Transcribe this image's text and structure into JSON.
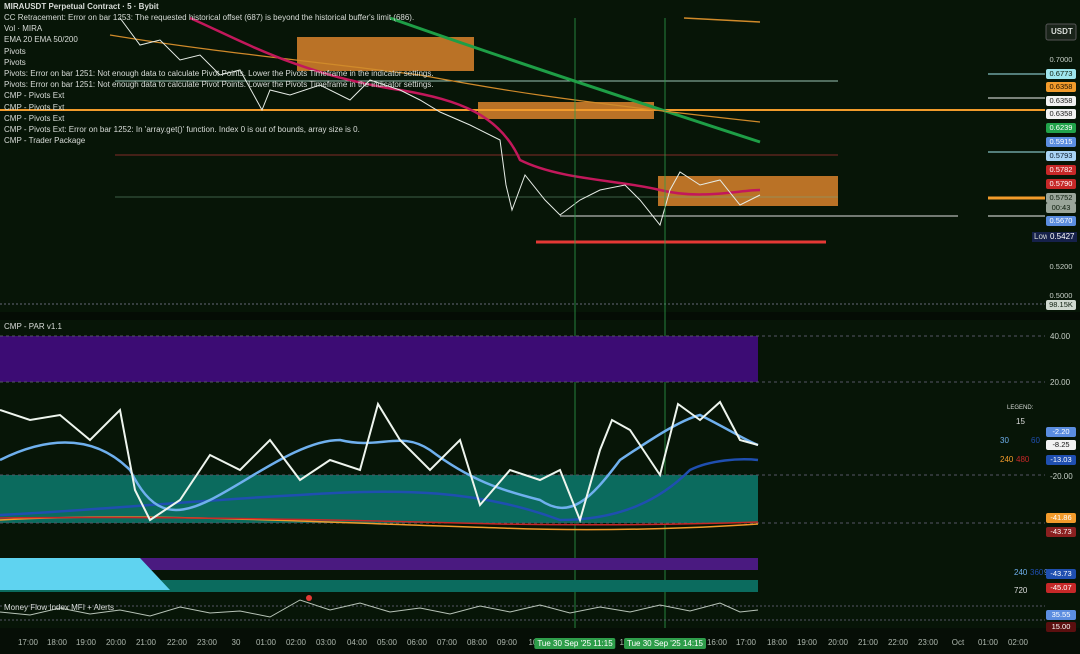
{
  "header": {
    "symbol": "MIRAUSDT Perpetual Contract · 5 · Bybit",
    "indicators": [
      "CC Retracement: Error on bar 1253: The requested historical offset (687) is beyond the historical buffer's limit (686).",
      "Vol · MIRA",
      "EMA 20 EMA 50/200",
      "Pivots",
      "Pivots",
      "Pivots: Error on bar 1251: Not enough data to calculate Pivot Points. Lower the Pivots Timeframe in the indicator settings.",
      "Pivots: Error on bar 1251: Not enough data to calculate Pivot Points. Lower the Pivots Timeframe in the indicator settings.",
      "CMP - Pivots Ext",
      "CMP - Pivots Ext",
      "CMP - Pivots Ext",
      "CMP - Pivots Ext: Error on bar 1252: In 'array.get()' function. Index 0 is out of bounds, array size is 0.",
      "CMP - Trader Package"
    ]
  },
  "price_axis": {
    "currency": "USDT",
    "labels": [
      {
        "text": "0.7000",
        "bg": "transparent",
        "fg": "#c8d0c8"
      },
      {
        "text": "0.6773",
        "bg": "#9fe6ee",
        "fg": "#0b1b0b"
      },
      {
        "text": "0.6358",
        "bg": "#f29b2b",
        "fg": "#1a1000"
      },
      {
        "text": "0.6358",
        "bg": "#f2f2f2",
        "fg": "#1a1a1a"
      },
      {
        "text": "0.6358",
        "bg": "#f2f2f2",
        "fg": "#1a1a1a"
      },
      {
        "text": "0.6239",
        "bg": "#21a34a",
        "fg": "#ffffff"
      },
      {
        "text": "0.5915",
        "bg": "#5b8de0",
        "fg": "#ffffff"
      },
      {
        "text": "0.5793",
        "bg": "#a9d4f5",
        "fg": "#0b1b2b"
      },
      {
        "text": "0.5782",
        "bg": "#c62828",
        "fg": "#ffffff"
      },
      {
        "text": "0.5790",
        "bg": "#c62828",
        "fg": "#ffffff"
      },
      {
        "text": "0.5752",
        "bg": "#9aa59a",
        "fg": "#0b1b0b"
      },
      {
        "text": "00:43",
        "bg": "#9aa59a",
        "fg": "#0b1b0b"
      },
      {
        "text": "0.5670",
        "bg": "#5b8de0",
        "fg": "#ffffff"
      },
      {
        "text": "0.5200",
        "bg": "transparent",
        "fg": "#c8d0c8"
      },
      {
        "text": "0.5000",
        "bg": "transparent",
        "fg": "#c8d0c8"
      },
      {
        "text": "98.15K",
        "bg": "#cfd8cf",
        "fg": "#102010"
      }
    ],
    "low_label": "Low",
    "low_value": "0.5427"
  },
  "par_panel": {
    "title": "CMP - PAR v1.1",
    "axis": [
      "40.00",
      "20.00",
      "-20.00"
    ],
    "legend_title": "LEGEND:",
    "legend": [
      "15",
      "30",
      "60",
      "240",
      "480"
    ],
    "value_labels": [
      {
        "text": "-2.20",
        "bg": "#5b8de0"
      },
      {
        "text": "-8.25",
        "bg": "#f2f2f2"
      },
      {
        "text": "-13.03",
        "bg": "#1f4fb0"
      },
      {
        "text": "-41.86",
        "bg": "#f29b2b"
      },
      {
        "text": "-43.73",
        "bg": "#8b2020"
      }
    ]
  },
  "sub_panel": {
    "legend": [
      "240",
      "360",
      "960",
      "720"
    ],
    "value_labels": [
      "-43.73",
      "-45.07"
    ]
  },
  "mfi_panel": {
    "title": "Money Flow Index MFI + Alerts",
    "value_labels": [
      "35.55",
      "15.00"
    ]
  },
  "time_axis": [
    "17:00",
    "18:00",
    "19:00",
    "20:00",
    "21:00",
    "22:00",
    "23:00",
    "30",
    "01:00",
    "02:00",
    "03:00",
    "04:00",
    "05:00",
    "06:00",
    "07:00",
    "08:00",
    "09:00",
    "10:",
    "Tue 30 Sep '25  11:15",
    "13:",
    "Tue 30 Sep '25  14:15",
    "16:00",
    "17:00",
    "18:00",
    "19:00",
    "20:00",
    "21:00",
    "22:00",
    "23:00",
    "Oct",
    "01:00",
    "02:00"
  ]
}
